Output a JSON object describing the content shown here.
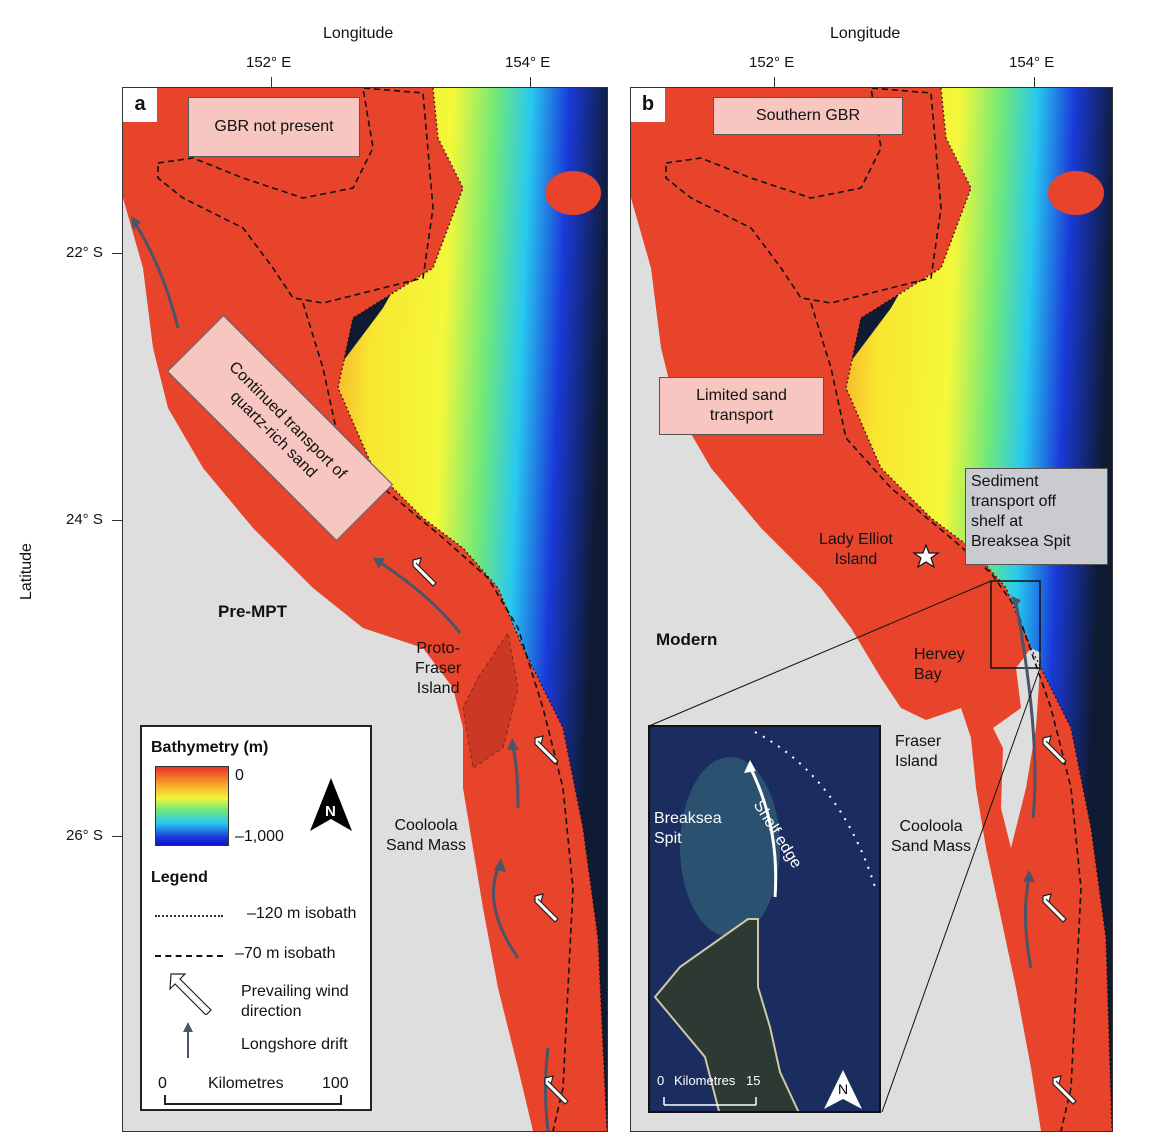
{
  "axes": {
    "x_label": "Longitude",
    "y_label": "Latitude",
    "x_ticks_a": [
      "152° E",
      "154° E"
    ],
    "x_ticks_b": [
      "152° E",
      "154° E"
    ],
    "y_ticks": [
      "22° S",
      "24° S",
      "26° S"
    ]
  },
  "panel_a": {
    "letter": "a",
    "box_top": "GBR not present",
    "box_diag": "Continued transport of quartz-rich sand",
    "era": "Pre-MPT",
    "proto_fraser": "Proto-\nFraser\nIsland",
    "cooloola": "Cooloola\nSand Mass"
  },
  "panel_b": {
    "letter": "b",
    "box_top": "Southern GBR",
    "box_limited": "Limited sand\ntransport",
    "box_sediment": "Sediment\ntransport off\nshelf at\nBreaksea Spit",
    "lady_elliot": "Lady Elliot\nIsland",
    "era": "Modern",
    "hervey_bay": "Hervey\nBay",
    "fraser": "Fraser\nIsland",
    "cooloola": "Cooloola\nSand Mass"
  },
  "inset": {
    "breaksea": "Breaksea\nSpit",
    "shelf_edge": "Shelf edge",
    "scale_0": "0",
    "scale_unit": "Kilometres",
    "scale_max": "15",
    "north": "N"
  },
  "legend": {
    "bathy_title": "Bathymetry (m)",
    "bathy_max": "0",
    "bathy_min": "–1,000",
    "north": "N",
    "legend_title": "Legend",
    "items": [
      "–120 m isobath",
      "–70 m isobath",
      "Prevailing wind\ndirection",
      "Longshore drift"
    ],
    "scale_0": "0",
    "scale_unit": "Kilometres",
    "scale_max": "100"
  },
  "colors": {
    "shelf": "#e8442c",
    "land": "#dedede",
    "deep": "#0f1a33",
    "box": "#f7c6c0",
    "drift": "#4a5568"
  }
}
